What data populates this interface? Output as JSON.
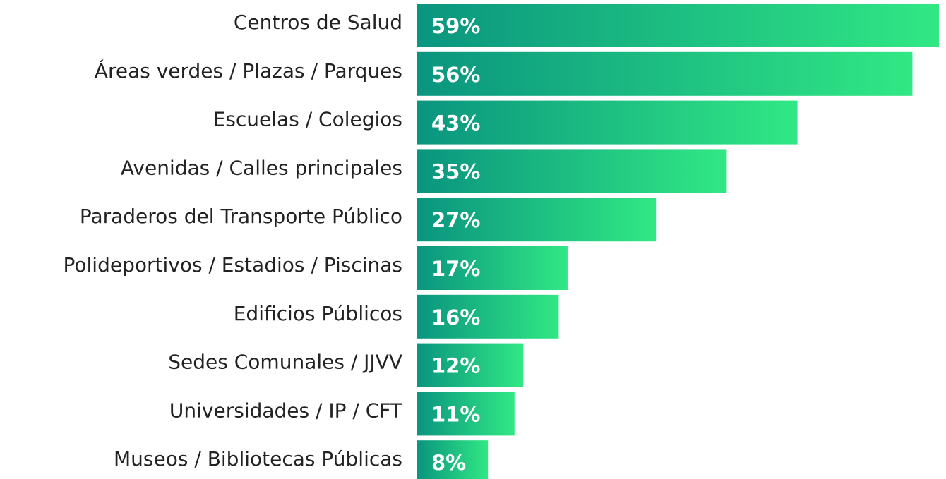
{
  "chart_data": {
    "type": "hbar",
    "categories": [
      "Centros de Salud",
      "Áreas verdes / Plazas / Parques",
      "Escuelas / Colegios",
      "Avenidas / Calles principales",
      "Paraderos del Transporte Público",
      "Polideportivos / Estadios / Piscinas",
      "Edificios Públicos",
      "Sedes Comunales / JJVV",
      "Universidades / IP / CFT",
      "Museos / Bibliotecas Públicas"
    ],
    "values": [
      59,
      56,
      43,
      35,
      27,
      17,
      16,
      12,
      11,
      8
    ],
    "value_labels": [
      "59%",
      "56%",
      "43%",
      "35%",
      "27%",
      "17%",
      "16%",
      "12%",
      "11%",
      "8%"
    ],
    "gradient": [
      "#0a957f",
      "#31e884"
    ]
  }
}
